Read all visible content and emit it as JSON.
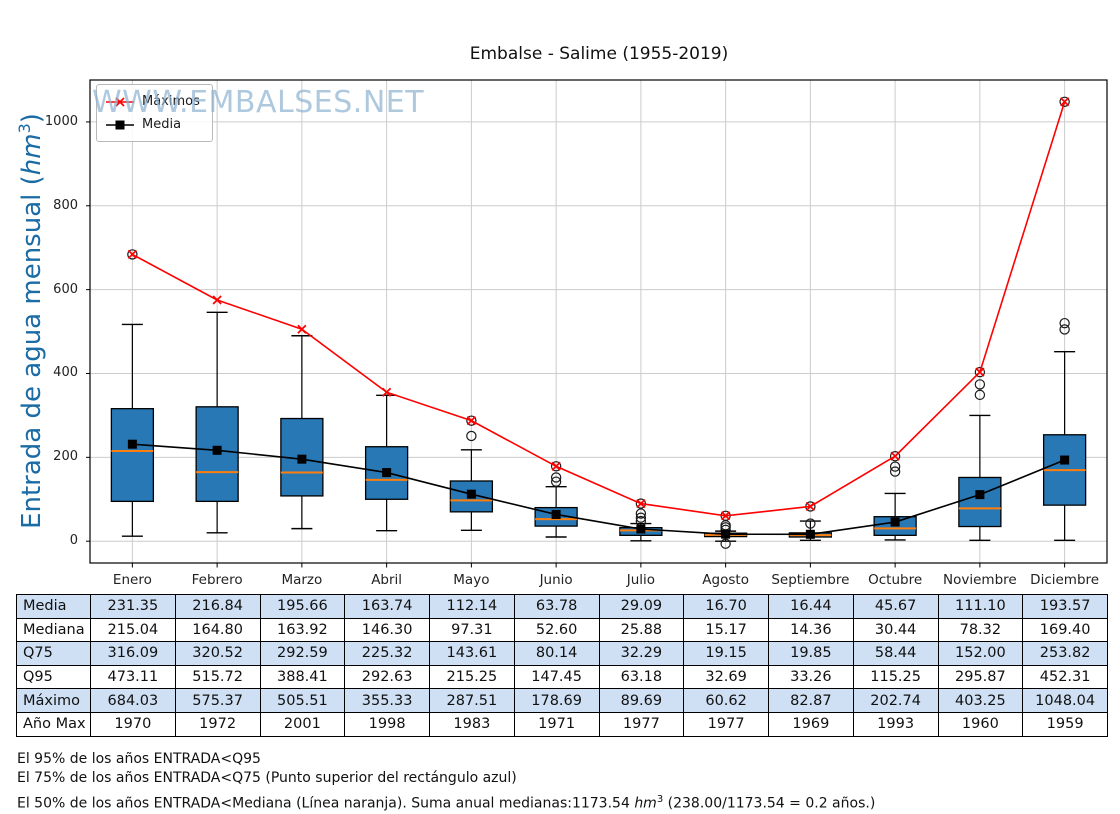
{
  "watermark": "WWW.EMBALSES.NET",
  "legend": {
    "items": [
      {
        "label": "Máximos",
        "marker": "x",
        "color": "#ff0000"
      },
      {
        "label": "Media",
        "marker": "square",
        "color": "#000000"
      }
    ]
  },
  "chart_data": {
    "type": "boxplot",
    "title": "Embalse - Salime (1955-2019)",
    "ylabel": "Entrada de agua mensual (hm³)",
    "ylabel_parts": {
      "prefix": "Entrada de agua mensual (",
      "unit": "hm",
      "exponent": "3",
      "suffix": ")"
    },
    "months": [
      "Enero",
      "Febrero",
      "Marzo",
      "Abril",
      "Mayo",
      "Junio",
      "Julio",
      "Agosto",
      "Septiembre",
      "Octubre",
      "Noviembre",
      "Diciembre"
    ],
    "ylim": [
      -52,
      1100
    ],
    "yticks": [
      0,
      200,
      400,
      600,
      800,
      1000
    ],
    "grid": true,
    "legend_position": "upper-left",
    "series": [
      {
        "name": "Máximos",
        "type": "line",
        "marker": "x",
        "color": "#ff0000",
        "values": [
          684.03,
          575.37,
          505.51,
          355.33,
          287.51,
          178.69,
          89.69,
          60.62,
          82.87,
          202.74,
          403.25,
          1048.04
        ]
      },
      {
        "name": "Media",
        "type": "line",
        "marker": "square",
        "color": "#000000",
        "values": [
          231.35,
          216.84,
          195.66,
          163.74,
          112.14,
          63.78,
          29.09,
          16.7,
          16.44,
          45.67,
          111.1,
          193.57
        ]
      }
    ],
    "boxplot": {
      "box_color": "#2878b5",
      "median_color": "#ff7f0e",
      "median": [
        215.04,
        164.8,
        163.92,
        146.3,
        97.31,
        52.6,
        25.88,
        15.17,
        14.36,
        30.44,
        78.32,
        169.4
      ],
      "q1": [
        95,
        95,
        108,
        100,
        70,
        36,
        14,
        11,
        10,
        14,
        35,
        86
      ],
      "q3": [
        316.09,
        320.52,
        292.59,
        225.32,
        143.61,
        80.14,
        32.29,
        19.15,
        19.85,
        58.44,
        152.0,
        253.82
      ],
      "whisker_low": [
        12,
        20,
        30,
        25,
        26,
        10,
        1,
        0,
        2,
        3,
        2,
        2
      ],
      "whisker_high": [
        517,
        546,
        490,
        348,
        218,
        130,
        42,
        24,
        48,
        114,
        300,
        452
      ],
      "outliers": [
        [
          684.03
        ],
        [],
        [],
        [],
        [
          287.51,
          251
        ],
        [
          178.69,
          152,
          142
        ],
        [
          89.69,
          66,
          56,
          48
        ],
        [
          60.62,
          38,
          33,
          27,
          -6
        ],
        [
          82.87,
          42
        ],
        [
          202.74,
          178,
          166
        ],
        [
          403.25,
          374,
          349
        ],
        [
          1048.04,
          520,
          505
        ]
      ]
    }
  },
  "table": {
    "row_labels": [
      "Media",
      "Mediana",
      "Q75",
      "Q95",
      "Máximo",
      "Año Max"
    ],
    "rows": [
      {
        "label": "Media",
        "values": [
          "231.35",
          "216.84",
          "195.66",
          "163.74",
          "112.14",
          "63.78",
          "29.09",
          "16.70",
          "16.44",
          "45.67",
          "111.10",
          "193.57"
        ]
      },
      {
        "label": "Mediana",
        "values": [
          "215.04",
          "164.80",
          "163.92",
          "146.30",
          "97.31",
          "52.60",
          "25.88",
          "15.17",
          "14.36",
          "30.44",
          "78.32",
          "169.40"
        ]
      },
      {
        "label": "Q75",
        "values": [
          "316.09",
          "320.52",
          "292.59",
          "225.32",
          "143.61",
          "80.14",
          "32.29",
          "19.15",
          "19.85",
          "58.44",
          "152.00",
          "253.82"
        ]
      },
      {
        "label": "Q95",
        "values": [
          "473.11",
          "515.72",
          "388.41",
          "292.63",
          "215.25",
          "147.45",
          "63.18",
          "32.69",
          "33.26",
          "115.25",
          "295.87",
          "452.31"
        ]
      },
      {
        "label": "Máximo",
        "values": [
          "684.03",
          "575.37",
          "505.51",
          "355.33",
          "287.51",
          "178.69",
          "89.69",
          "60.62",
          "82.87",
          "202.74",
          "403.25",
          "1048.04"
        ]
      },
      {
        "label": "Año Max",
        "values": [
          "1970",
          "1972",
          "2001",
          "1998",
          "1983",
          "1971",
          "1977",
          "1977",
          "1969",
          "1993",
          "1960",
          "1959"
        ]
      }
    ],
    "alt_row_color": "#cfe0f4"
  },
  "notes": {
    "line1": "El 95% de los años ENTRADA<Q95",
    "line2": "El 75% de los años ENTRADA<Q75 (Punto superior del rectángulo azul)",
    "line3": {
      "pre": "El 50% de los años ENTRADA<Mediana (Línea naranja). Suma anual medianas:1173.54 ",
      "unit": "hm",
      "exponent": "3",
      "post": " (238.00/1173.54 = 0.2 años.)"
    }
  }
}
